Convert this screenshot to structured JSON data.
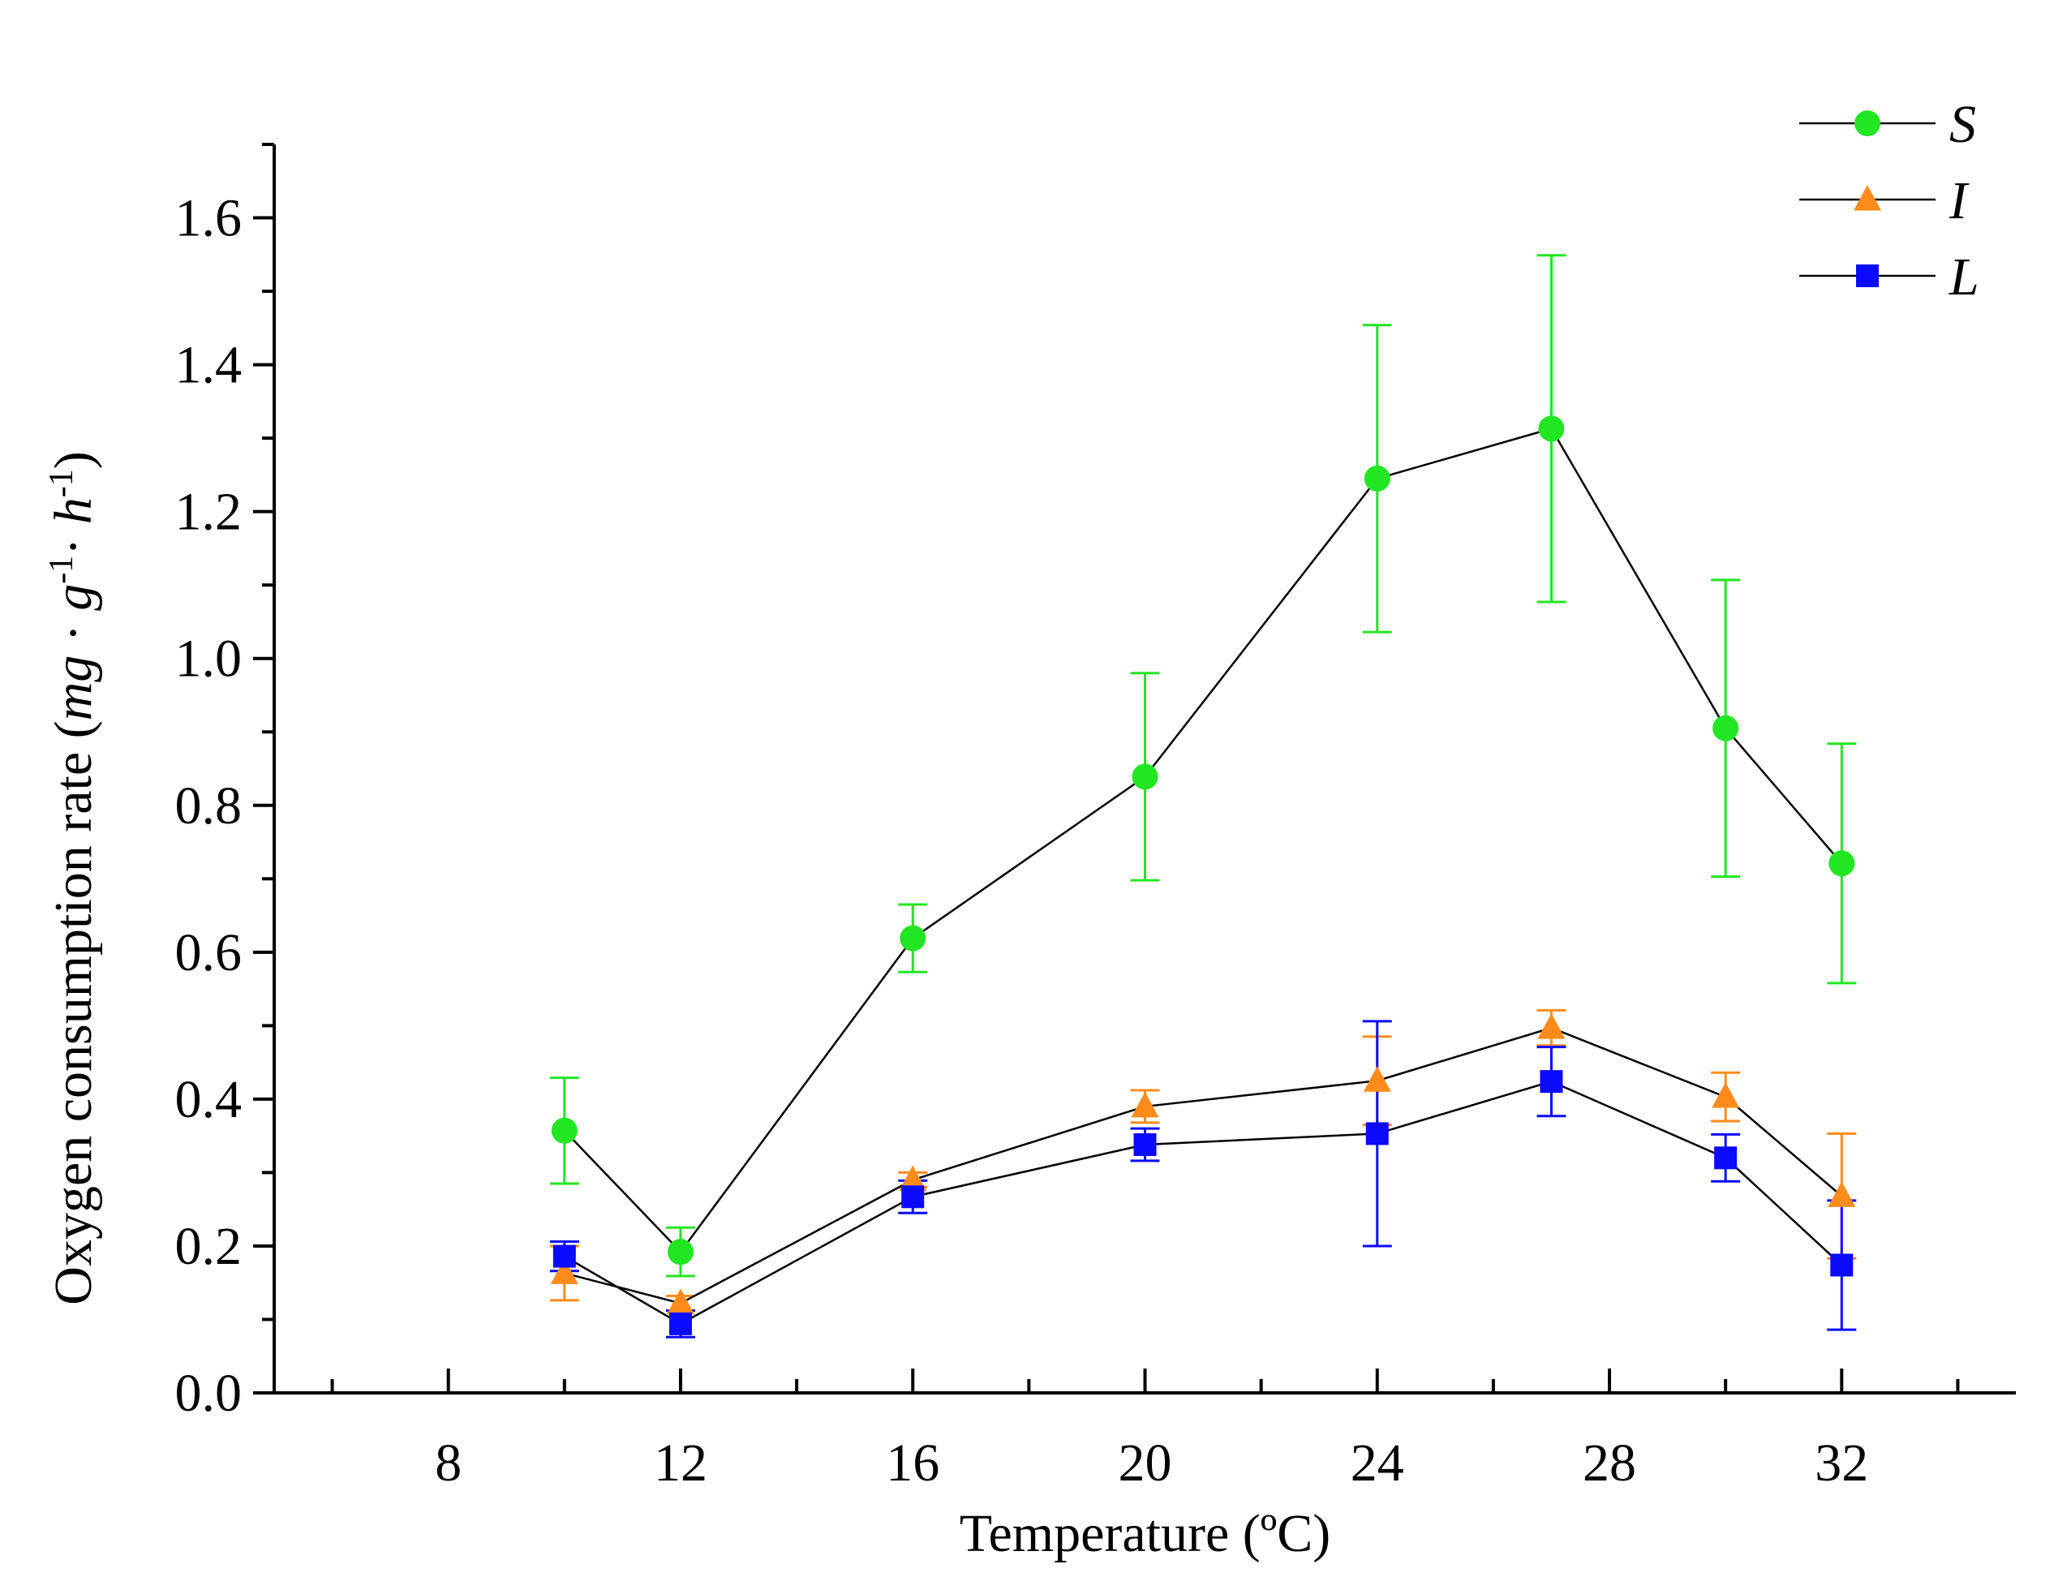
{
  "chart_data": {
    "type": "line",
    "title": "",
    "xlabel": "Temperature (ºC)",
    "ylabel": {
      "prefix": "Oxygen consumption rate (",
      "mg": "mg",
      "dot1": " · ",
      "g": "g",
      "sup1": "-1",
      "dot2": "· ",
      "h": "h",
      "sup2": "-1",
      "suffix": ")"
    },
    "xlim": [
      5,
      35
    ],
    "ylim": [
      0,
      1.7
    ],
    "xticks": [
      8,
      12,
      16,
      20,
      24,
      28,
      32
    ],
    "xtick_labels": [
      "8",
      "12",
      "16",
      "20",
      "24",
      "28",
      "32"
    ],
    "yticks": [
      0,
      0.2,
      0.4,
      0.6,
      0.8,
      1.0,
      1.2,
      1.4,
      1.6
    ],
    "ytick_labels": [
      "0.0",
      "0.2",
      "0.4",
      "0.6",
      "0.8",
      "1.0",
      "1.2",
      "1.4",
      "1.6"
    ],
    "grid": false,
    "legend_position": "top-right",
    "x": [
      10,
      12,
      16,
      20,
      24,
      27,
      30,
      32
    ],
    "series": [
      {
        "name": "S",
        "marker": "circle",
        "color": "#22e622",
        "values": [
          0.357,
          0.192,
          0.619,
          0.839,
          1.245,
          1.313,
          0.905,
          0.721
        ],
        "errors": [
          0.072,
          0.033,
          0.046,
          0.141,
          0.209,
          0.236,
          0.202,
          0.163
        ]
      },
      {
        "name": "I",
        "marker": "triangle",
        "color": "#ff8c1a",
        "values": [
          0.163,
          0.122,
          0.29,
          0.39,
          0.425,
          0.497,
          0.403,
          0.268
        ],
        "errors": [
          0.037,
          0.01,
          0.01,
          0.022,
          0.06,
          0.024,
          0.033,
          0.085
        ]
      },
      {
        "name": "L",
        "marker": "square",
        "color": "#0a0aff",
        "values": [
          0.186,
          0.094,
          0.267,
          0.338,
          0.353,
          0.424,
          0.32,
          0.174
        ],
        "errors": [
          0.02,
          0.018,
          0.022,
          0.022,
          0.153,
          0.047,
          0.032,
          0.088
        ]
      }
    ]
  }
}
